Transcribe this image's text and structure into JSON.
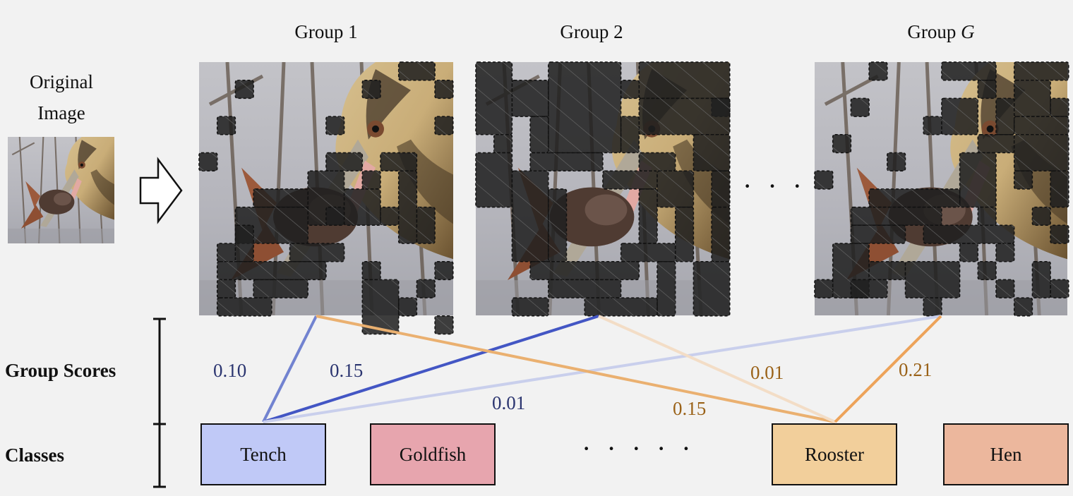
{
  "original": {
    "label_line1": "Original",
    "label_line2": "Image"
  },
  "groups": [
    {
      "title": "Group 1"
    },
    {
      "title": "Group 2"
    },
    {
      "title_prefix": "Group ",
      "title_var": "G"
    }
  ],
  "ellipsis_groups": "· · ·",
  "ellipsis_classes": "· · · · ·",
  "row_labels": {
    "scores": "Group Scores",
    "classes": "Classes"
  },
  "classes": [
    {
      "label": "Tench",
      "color": "#c0c9f7"
    },
    {
      "label": "Goldfish",
      "color": "#e7a5ae"
    },
    {
      "label": "Rooster",
      "color": "#f2cf9b"
    },
    {
      "label": "Hen",
      "color": "#ecb79d"
    }
  ],
  "scores": {
    "tench_group1": "0.10",
    "tench_group2": "0.15",
    "tench_groupG": "0.01",
    "rooster_group1": "0.15",
    "rooster_group2": "0.01",
    "rooster_groupG": "0.21"
  },
  "colors": {
    "blue_line": "#4356c4",
    "orange_line": "#eda35a",
    "mask": "#2a2a2a"
  }
}
